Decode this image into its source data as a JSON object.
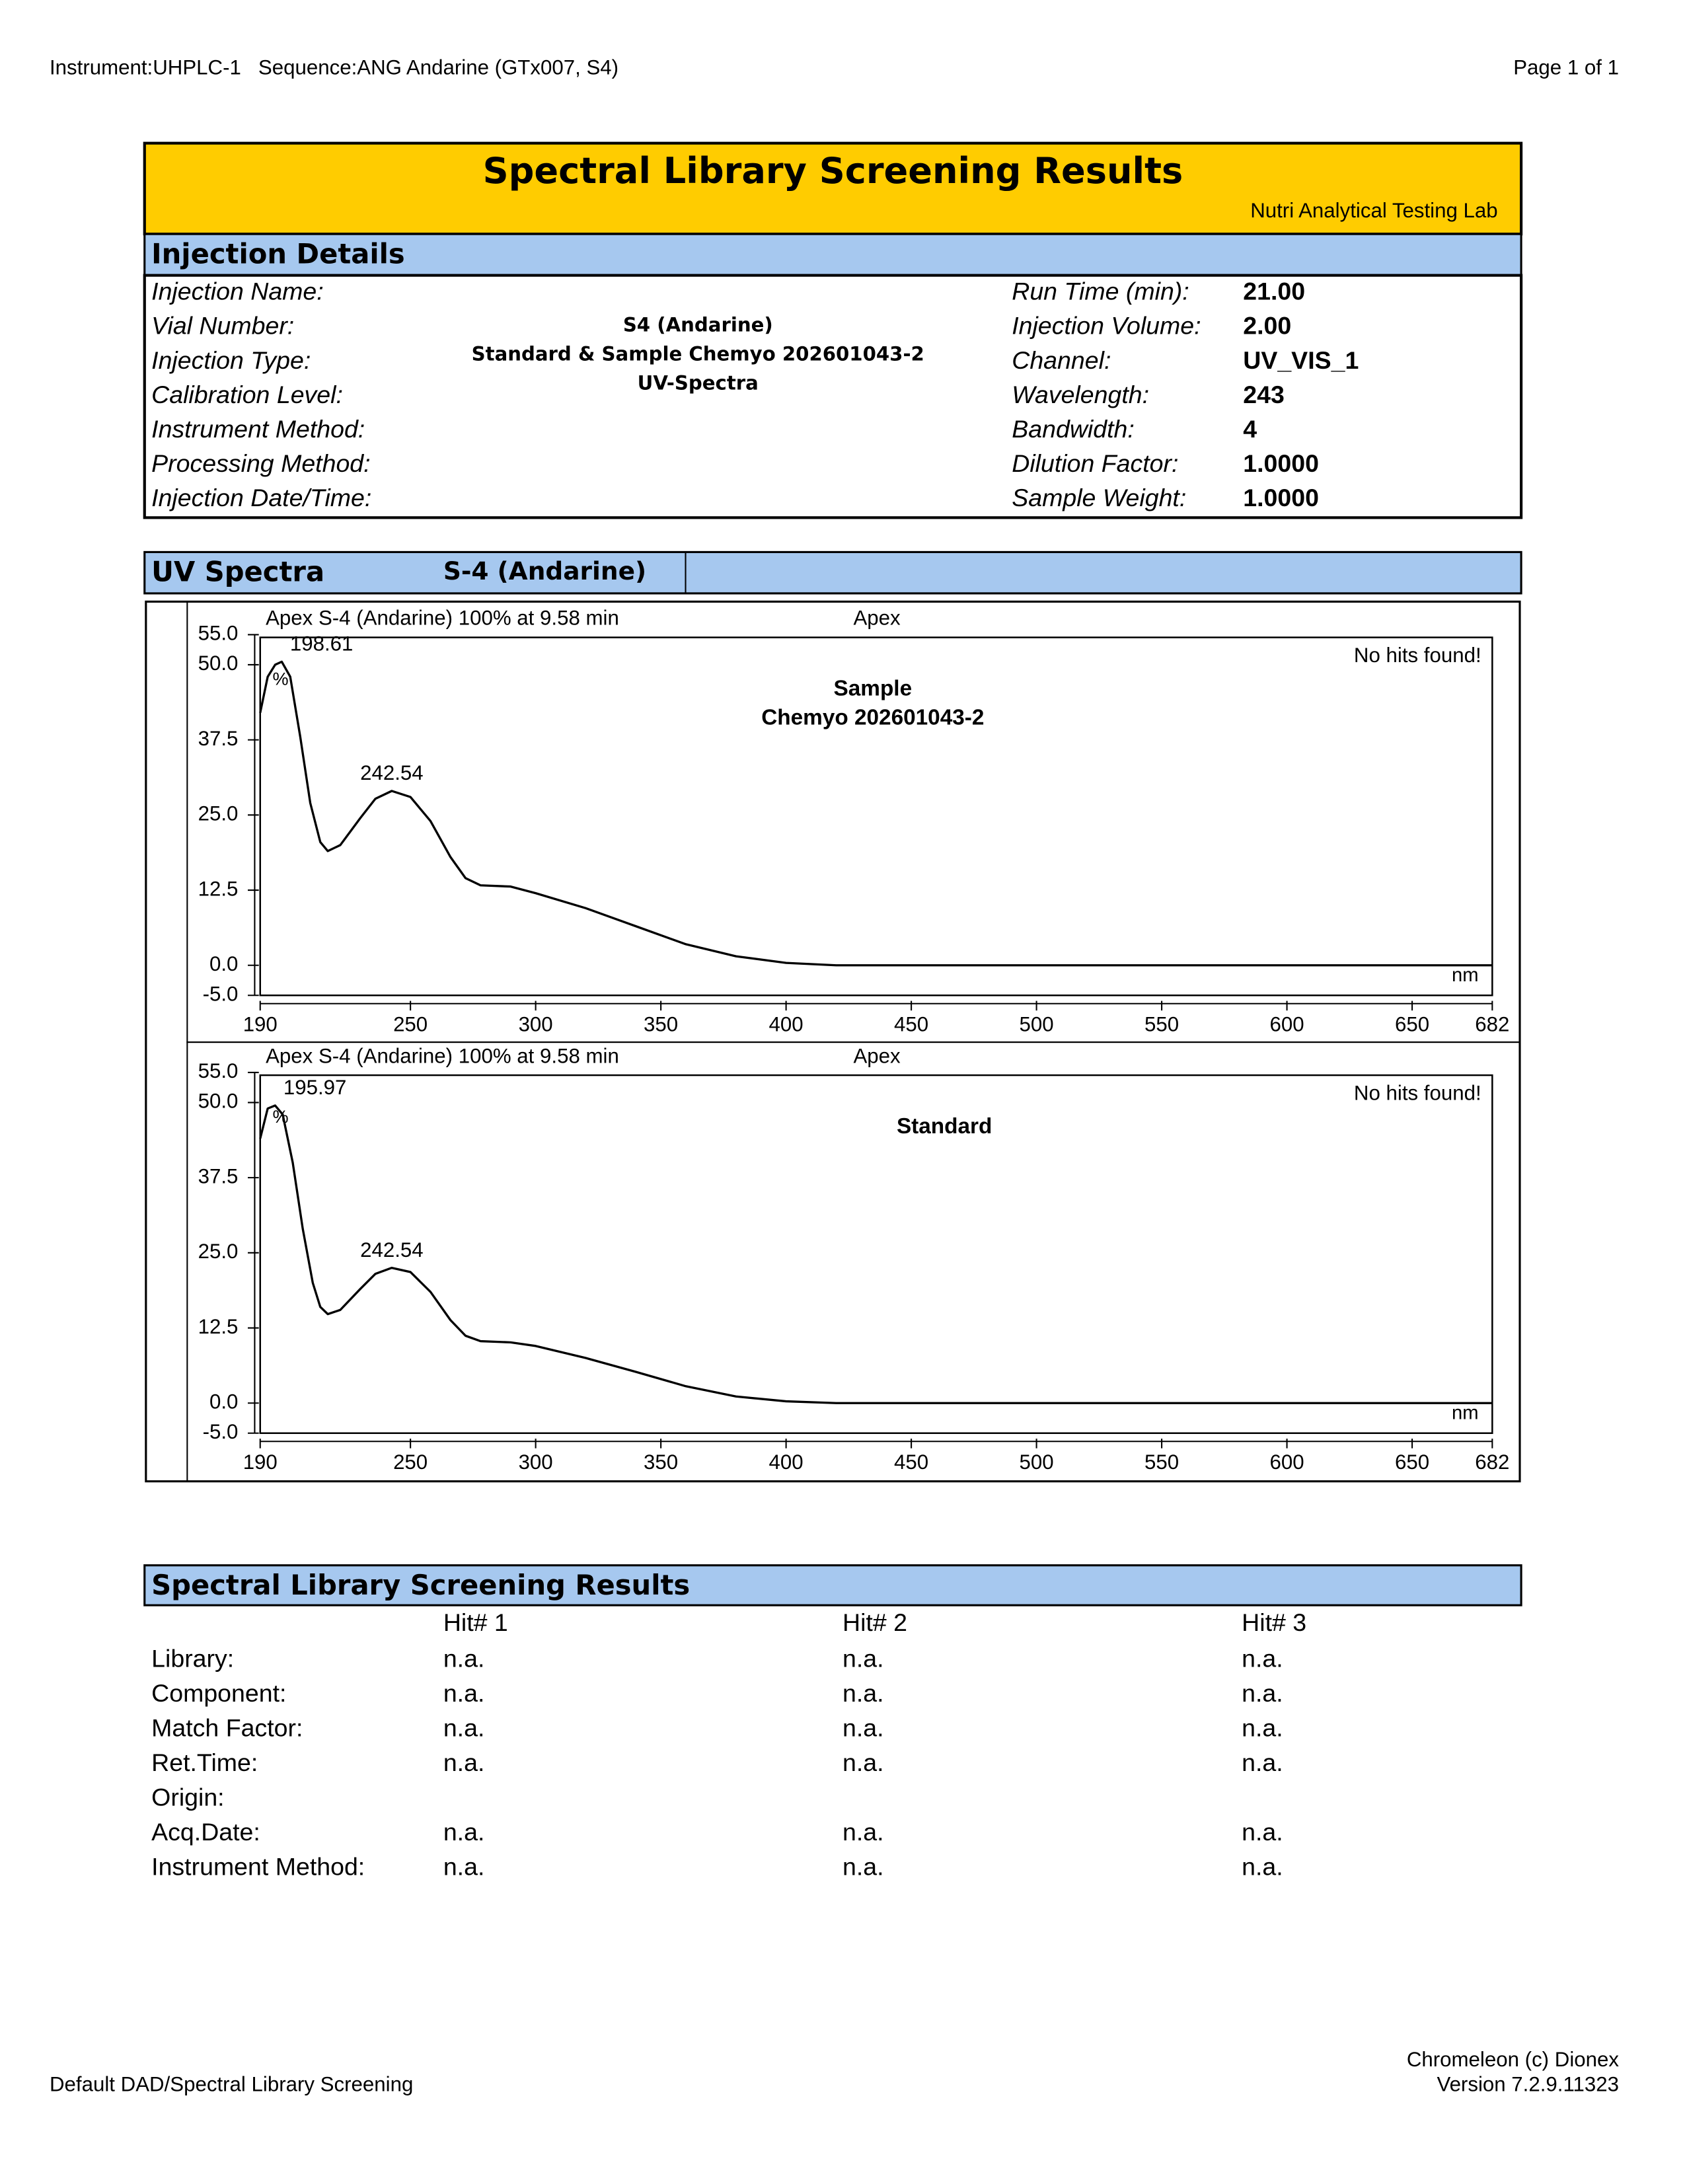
{
  "header": {
    "left": "Instrument:UHPLC-1   Sequence:ANG Andarine (GTx007, S4)",
    "page": "Page 1 of 1"
  },
  "report": {
    "title": "Spectral Library Screening Results",
    "lab": "Nutri Analytical Testing Lab"
  },
  "injection_details": {
    "heading": "Injection Details",
    "left_labels": [
      "Injection Name:",
      "Vial Number:",
      "Injection Type:",
      "Calibration Level:",
      "Instrument Method:",
      "Processing Method:",
      "Injection Date/Time:"
    ],
    "center_lines": [
      "S4 (Andarine)",
      "Standard & Sample Chemyo 202601043-2",
      "UV-Spectra"
    ],
    "right": [
      {
        "label": "Run Time (min):",
        "value": "21.00"
      },
      {
        "label": "Injection Volume:",
        "value": "2.00"
      },
      {
        "label": "Channel:",
        "value": "UV_VIS_1"
      },
      {
        "label": "Wavelength:",
        "value": "243"
      },
      {
        "label": "Bandwidth:",
        "value": "4"
      },
      {
        "label": "Dilution Factor:",
        "value": "1.0000"
      },
      {
        "label": "Sample Weight:",
        "value": "1.0000"
      }
    ]
  },
  "uv_spectra": {
    "heading": "UV Spectra",
    "compound": "S-4 (Andarine)"
  },
  "chart_data": [
    {
      "type": "line",
      "title": "Apex S-4 (Andarine) 100% at 9.58 min",
      "subtitle": "Apex",
      "note": "No hits found!",
      "labels": [
        "Sample",
        "Chemyo 202601043-2"
      ],
      "ylabel": "%",
      "xlabel": "nm",
      "color": "#000000",
      "x": [
        190,
        193,
        196,
        198.61,
        202,
        206,
        210,
        214,
        217,
        222,
        230,
        236,
        242.54,
        250,
        258,
        266,
        272,
        278,
        290,
        300,
        320,
        340,
        360,
        380,
        400,
        420,
        500,
        682
      ],
      "values": [
        42,
        48,
        50,
        50.5,
        48,
        38,
        27,
        20.5,
        19,
        20,
        24.5,
        27.7,
        29,
        28,
        24,
        18,
        14.5,
        13.3,
        13.1,
        12,
        9.5,
        6.5,
        3.5,
        1.5,
        0.4,
        0,
        0,
        0
      ],
      "peaks": [
        198.61,
        242.54
      ],
      "xlim": [
        190,
        682
      ],
      "xticks": [
        190,
        250,
        300,
        350,
        400,
        450,
        500,
        550,
        600,
        650,
        682
      ],
      "ylim": [
        -5,
        55
      ],
      "yticks": [
        {
          "value": -5,
          "label": "-5.0"
        },
        {
          "value": 0,
          "label": "0.0"
        },
        12.5,
        {
          "value": 25,
          "label": "25.0"
        },
        {
          "value": 37.5,
          "label": "37.5"
        },
        {
          "value": 50,
          "label": "50.0"
        },
        {
          "value": 55,
          "label": "55.0"
        }
      ]
    },
    {
      "type": "line",
      "title": "Apex S-4 (Andarine) 100% at 9.58 min",
      "subtitle": "Apex",
      "note": "No hits found!",
      "labels": [
        "Standard"
      ],
      "ylabel": "%",
      "xlabel": "nm",
      "color": "#000000",
      "x": [
        190,
        193,
        195.97,
        199,
        203,
        207,
        211,
        214,
        217,
        222,
        230,
        236,
        242.54,
        250,
        258,
        266,
        272,
        278,
        290,
        300,
        320,
        340,
        360,
        380,
        400,
        420,
        500,
        682
      ],
      "values": [
        44,
        49,
        49.5,
        48,
        40,
        29,
        20,
        16,
        14.8,
        15.5,
        19,
        21.5,
        22.5,
        21.8,
        18.5,
        13.8,
        11.2,
        10.3,
        10.1,
        9.5,
        7.5,
        5.2,
        2.8,
        1.1,
        0.3,
        0,
        0,
        0
      ],
      "peaks": [
        195.97,
        242.54
      ],
      "xlim": [
        190,
        682
      ],
      "xticks": [
        190,
        250,
        300,
        350,
        400,
        450,
        500,
        550,
        600,
        650,
        682
      ],
      "ylim": [
        -5,
        55
      ],
      "yticks": [
        {
          "value": -5,
          "label": "-5.0"
        },
        {
          "value": 0,
          "label": "0.0"
        },
        12.5,
        {
          "value": 25,
          "label": "25.0"
        },
        {
          "value": 37.5,
          "label": "37.5"
        },
        {
          "value": 50,
          "label": "50.0"
        },
        {
          "value": 55,
          "label": "55.0"
        }
      ]
    }
  ],
  "results": {
    "heading": "Spectral Library Screening Results",
    "columns": [
      "Hit# 1",
      "Hit# 2",
      "Hit# 3"
    ],
    "rows": [
      {
        "label": "Library:",
        "values": [
          "n.a.",
          "n.a.",
          "n.a."
        ]
      },
      {
        "label": "Component:",
        "values": [
          "n.a.",
          "n.a.",
          "n.a."
        ]
      },
      {
        "label": "Match Factor:",
        "values": [
          "n.a.",
          "n.a.",
          "n.a."
        ]
      },
      {
        "label": "Ret.Time:",
        "values": [
          "n.a.",
          "n.a.",
          "n.a."
        ]
      },
      {
        "label": "Origin:",
        "values": []
      },
      {
        "label": "Acq.Date:",
        "values": [
          "n.a.",
          "n.a.",
          "n.a."
        ]
      },
      {
        "label": "Instrument Method:",
        "values": [
          "n.a.",
          "n.a.",
          "n.a."
        ]
      }
    ]
  },
  "footer": {
    "left": "Default DAD/Spectral Library Screening",
    "right": [
      "Chromeleon (c) Dionex",
      "Version 7.2.9.11323"
    ]
  }
}
